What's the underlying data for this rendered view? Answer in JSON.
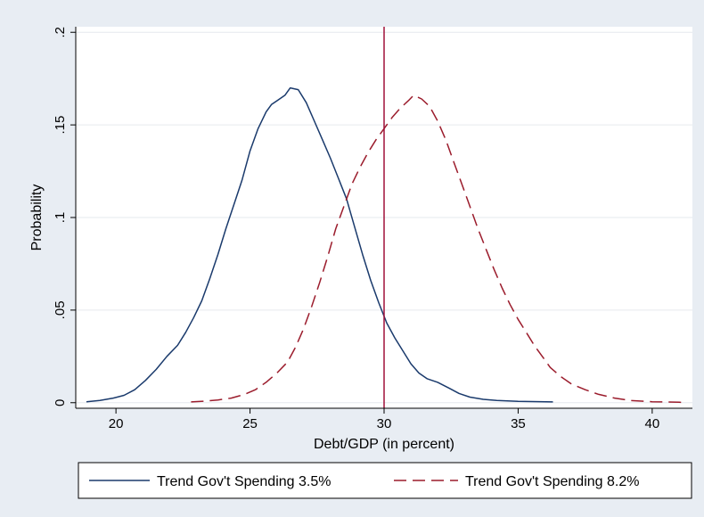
{
  "chart_data": {
    "type": "line",
    "title": "",
    "xlabel": "Debt/GDP (in percent)",
    "ylabel": "Probability",
    "xlim": [
      18.5,
      41.5
    ],
    "ylim": [
      -0.003,
      0.203
    ],
    "x_ticks": [
      20,
      25,
      30,
      35,
      40
    ],
    "y_ticks": [
      0,
      0.05,
      0.1,
      0.15,
      0.2
    ],
    "x_tick_labels": [
      "20",
      "25",
      "30",
      "35",
      "40"
    ],
    "y_tick_labels": [
      "0",
      ".05",
      ".1",
      ".15",
      ".2"
    ],
    "grid": "horizontal",
    "legend_position": "bottom",
    "vertical_line": {
      "x": 30,
      "color": "#a0103a"
    },
    "series": [
      {
        "name": "Trend Gov't Spending 3.5%",
        "color": "#1a3a6c",
        "style": "solid",
        "points": [
          [
            18.9,
            0.0005
          ],
          [
            19.4,
            0.0012
          ],
          [
            19.9,
            0.0025
          ],
          [
            20.3,
            0.004
          ],
          [
            20.7,
            0.007
          ],
          [
            21.1,
            0.012
          ],
          [
            21.5,
            0.018
          ],
          [
            21.9,
            0.025
          ],
          [
            22.3,
            0.031
          ],
          [
            22.6,
            0.038
          ],
          [
            22.9,
            0.046
          ],
          [
            23.2,
            0.055
          ],
          [
            23.5,
            0.067
          ],
          [
            23.8,
            0.08
          ],
          [
            24.1,
            0.094
          ],
          [
            24.4,
            0.107
          ],
          [
            24.7,
            0.12
          ],
          [
            25.0,
            0.136
          ],
          [
            25.3,
            0.148
          ],
          [
            25.6,
            0.157
          ],
          [
            25.8,
            0.161
          ],
          [
            26.0,
            0.163
          ],
          [
            26.3,
            0.166
          ],
          [
            26.5,
            0.17
          ],
          [
            26.8,
            0.169
          ],
          [
            27.1,
            0.162
          ],
          [
            27.4,
            0.152
          ],
          [
            27.7,
            0.142
          ],
          [
            28.0,
            0.132
          ],
          [
            28.3,
            0.121
          ],
          [
            28.6,
            0.11
          ],
          [
            28.9,
            0.095
          ],
          [
            29.2,
            0.08
          ],
          [
            29.5,
            0.066
          ],
          [
            29.8,
            0.054
          ],
          [
            30.1,
            0.043
          ],
          [
            30.4,
            0.035
          ],
          [
            30.7,
            0.028
          ],
          [
            31.0,
            0.021
          ],
          [
            31.3,
            0.016
          ],
          [
            31.6,
            0.013
          ],
          [
            32.0,
            0.011
          ],
          [
            32.4,
            0.008
          ],
          [
            32.8,
            0.005
          ],
          [
            33.2,
            0.003
          ],
          [
            33.7,
            0.0018
          ],
          [
            34.2,
            0.0012
          ],
          [
            35.0,
            0.0007
          ],
          [
            36.3,
            0.0004
          ]
        ]
      },
      {
        "name": "Trend Gov't Spending 8.2%",
        "color": "#9b1c2c",
        "style": "dashed",
        "points": [
          [
            22.8,
            0.0004
          ],
          [
            23.3,
            0.0008
          ],
          [
            23.8,
            0.0015
          ],
          [
            24.3,
            0.0025
          ],
          [
            24.8,
            0.0045
          ],
          [
            25.2,
            0.007
          ],
          [
            25.6,
            0.011
          ],
          [
            26.0,
            0.016
          ],
          [
            26.4,
            0.022
          ],
          [
            26.7,
            0.03
          ],
          [
            27.0,
            0.04
          ],
          [
            27.3,
            0.052
          ],
          [
            27.6,
            0.065
          ],
          [
            27.9,
            0.079
          ],
          [
            28.2,
            0.094
          ],
          [
            28.5,
            0.106
          ],
          [
            28.8,
            0.118
          ],
          [
            29.1,
            0.127
          ],
          [
            29.4,
            0.135
          ],
          [
            29.7,
            0.142
          ],
          [
            30.0,
            0.148
          ],
          [
            30.3,
            0.154
          ],
          [
            30.6,
            0.159
          ],
          [
            30.9,
            0.163
          ],
          [
            31.1,
            0.166
          ],
          [
            31.4,
            0.164
          ],
          [
            31.7,
            0.16
          ],
          [
            32.0,
            0.152
          ],
          [
            32.3,
            0.142
          ],
          [
            32.6,
            0.13
          ],
          [
            32.9,
            0.118
          ],
          [
            33.2,
            0.106
          ],
          [
            33.5,
            0.094
          ],
          [
            33.8,
            0.083
          ],
          [
            34.1,
            0.072
          ],
          [
            34.4,
            0.062
          ],
          [
            34.7,
            0.053
          ],
          [
            35.0,
            0.045
          ],
          [
            35.3,
            0.038
          ],
          [
            35.6,
            0.031
          ],
          [
            35.9,
            0.025
          ],
          [
            36.2,
            0.019
          ],
          [
            36.6,
            0.014
          ],
          [
            37.0,
            0.01
          ],
          [
            37.5,
            0.007
          ],
          [
            38.0,
            0.0045
          ],
          [
            38.6,
            0.0025
          ],
          [
            39.2,
            0.0012
          ],
          [
            40.0,
            0.0005
          ],
          [
            41.2,
            0.0002
          ]
        ]
      }
    ]
  }
}
